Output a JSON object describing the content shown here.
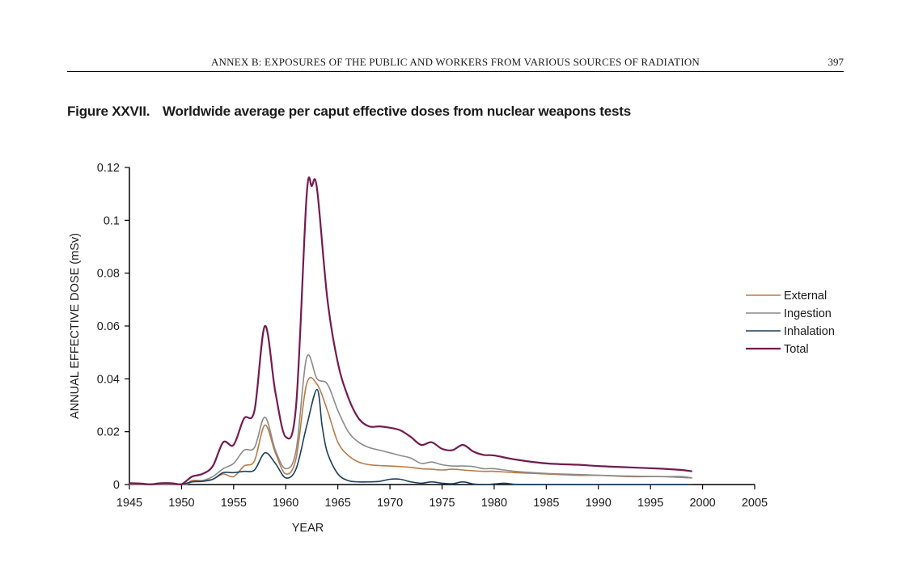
{
  "header": {
    "running_title": "ANNEX B: EXPOSURES OF THE PUBLIC AND WORKERS FROM VARIOUS SOURCES OF RADIATION",
    "page_number": "397"
  },
  "figure": {
    "label": "Figure XXVII.",
    "title": "Worldwide average per caput effective doses from nuclear weapons tests"
  },
  "chart_data": {
    "type": "line",
    "xlabel": "YEAR",
    "ylabel": "ANNUAL EFFECTIVE DOSE (mSv)",
    "xlim": [
      1945,
      2005
    ],
    "ylim": [
      0,
      0.12
    ],
    "x_ticks": [
      1945,
      1950,
      1955,
      1960,
      1965,
      1970,
      1975,
      1980,
      1985,
      1990,
      1995,
      2000,
      2005
    ],
    "y_ticks": [
      "0",
      "0.02",
      "0.04",
      "0.06",
      "0.08",
      "0.1",
      "0.12"
    ],
    "legend_position": "right",
    "grid": false,
    "series": [
      {
        "name": "External",
        "color": "#b97a45",
        "points": [
          [
            1945,
            0
          ],
          [
            1950,
            0
          ],
          [
            1951,
            0.0015
          ],
          [
            1952,
            0.0015
          ],
          [
            1953,
            0.002
          ],
          [
            1954,
            0.004
          ],
          [
            1955,
            0.003
          ],
          [
            1956,
            0.007
          ],
          [
            1957,
            0.009
          ],
          [
            1958,
            0.0225
          ],
          [
            1959,
            0.012
          ],
          [
            1960,
            0.004
          ],
          [
            1961,
            0.01
          ],
          [
            1962,
            0.038
          ],
          [
            1963,
            0.038
          ],
          [
            1964,
            0.028
          ],
          [
            1965,
            0.016
          ],
          [
            1966,
            0.011
          ],
          [
            1967,
            0.0085
          ],
          [
            1968,
            0.0075
          ],
          [
            1969,
            0.0072
          ],
          [
            1970,
            0.007
          ],
          [
            1971,
            0.0068
          ],
          [
            1972,
            0.0065
          ],
          [
            1973,
            0.006
          ],
          [
            1974,
            0.0058
          ],
          [
            1975,
            0.0055
          ],
          [
            1976,
            0.0058
          ],
          [
            1977,
            0.0055
          ],
          [
            1978,
            0.0052
          ],
          [
            1979,
            0.005
          ],
          [
            1980,
            0.005
          ],
          [
            1982,
            0.0045
          ],
          [
            1985,
            0.004
          ],
          [
            1988,
            0.0035
          ],
          [
            1990,
            0.0035
          ],
          [
            1993,
            0.003
          ],
          [
            1996,
            0.003
          ],
          [
            1999,
            0.0025
          ]
        ]
      },
      {
        "name": "Ingestion",
        "color": "#8a8a8a",
        "points": [
          [
            1945,
            0
          ],
          [
            1950,
            0
          ],
          [
            1951,
            0.001
          ],
          [
            1952,
            0.0015
          ],
          [
            1953,
            0.003
          ],
          [
            1954,
            0.006
          ],
          [
            1955,
            0.008
          ],
          [
            1956,
            0.013
          ],
          [
            1957,
            0.014
          ],
          [
            1958,
            0.0255
          ],
          [
            1959,
            0.013
          ],
          [
            1960,
            0.006
          ],
          [
            1961,
            0.013
          ],
          [
            1962,
            0.048
          ],
          [
            1963,
            0.04
          ],
          [
            1964,
            0.038
          ],
          [
            1965,
            0.028
          ],
          [
            1966,
            0.02
          ],
          [
            1967,
            0.016
          ],
          [
            1968,
            0.014
          ],
          [
            1969,
            0.013
          ],
          [
            1970,
            0.012
          ],
          [
            1971,
            0.011
          ],
          [
            1972,
            0.01
          ],
          [
            1973,
            0.008
          ],
          [
            1974,
            0.0085
          ],
          [
            1975,
            0.0075
          ],
          [
            1976,
            0.007
          ],
          [
            1977,
            0.007
          ],
          [
            1978,
            0.0068
          ],
          [
            1979,
            0.006
          ],
          [
            1980,
            0.006
          ],
          [
            1982,
            0.005
          ],
          [
            1985,
            0.0042
          ],
          [
            1988,
            0.0038
          ],
          [
            1990,
            0.0035
          ],
          [
            1993,
            0.0032
          ],
          [
            1996,
            0.003
          ],
          [
            1998,
            0.003
          ],
          [
            1999,
            0.0025
          ]
        ]
      },
      {
        "name": "Inhalation",
        "color": "#1b3f5e",
        "points": [
          [
            1945,
            0.0005
          ],
          [
            1946,
            0.0004
          ],
          [
            1947,
            0.0001
          ],
          [
            1948,
            0.0005
          ],
          [
            1949,
            0.0005
          ],
          [
            1950,
            0.0001
          ],
          [
            1951,
            0.001
          ],
          [
            1952,
            0.0012
          ],
          [
            1953,
            0.002
          ],
          [
            1954,
            0.0045
          ],
          [
            1955,
            0.0045
          ],
          [
            1956,
            0.005
          ],
          [
            1957,
            0.0055
          ],
          [
            1958,
            0.012
          ],
          [
            1959,
            0.008
          ],
          [
            1960,
            0.0025
          ],
          [
            1961,
            0.006
          ],
          [
            1962,
            0.022
          ],
          [
            1963,
            0.036
          ],
          [
            1963.5,
            0.022
          ],
          [
            1964,
            0.012
          ],
          [
            1965,
            0.004
          ],
          [
            1966,
            0.0015
          ],
          [
            1967,
            0.001
          ],
          [
            1968,
            0.001
          ],
          [
            1969,
            0.0012
          ],
          [
            1970,
            0.002
          ],
          [
            1971,
            0.002
          ],
          [
            1972,
            0.001
          ],
          [
            1973,
            0.0005
          ],
          [
            1974,
            0.001
          ],
          [
            1975,
            0.0005
          ],
          [
            1976,
            0.0003
          ],
          [
            1977,
            0.001
          ],
          [
            1978,
            0.0002
          ],
          [
            1979,
            0
          ],
          [
            1980,
            0.0002
          ],
          [
            1981,
            0.0005
          ],
          [
            1982,
            0.0001
          ],
          [
            1985,
            0
          ],
          [
            1990,
            0
          ],
          [
            1995,
            0
          ],
          [
            1999,
            0
          ]
        ]
      },
      {
        "name": "Total",
        "color": "#741a4f",
        "points": [
          [
            1945,
            0.0005
          ],
          [
            1946,
            0.0004
          ],
          [
            1947,
            0.0001
          ],
          [
            1948,
            0.0005
          ],
          [
            1949,
            0.0005
          ],
          [
            1950,
            0.0001
          ],
          [
            1951,
            0.003
          ],
          [
            1952,
            0.004
          ],
          [
            1953,
            0.007
          ],
          [
            1954,
            0.016
          ],
          [
            1955,
            0.015
          ],
          [
            1956,
            0.025
          ],
          [
            1957,
            0.028
          ],
          [
            1958,
            0.06
          ],
          [
            1959,
            0.035
          ],
          [
            1960,
            0.018
          ],
          [
            1961,
            0.03
          ],
          [
            1962,
            0.109
          ],
          [
            1962.5,
            0.113
          ],
          [
            1963,
            0.112
          ],
          [
            1964,
            0.07
          ],
          [
            1965,
            0.046
          ],
          [
            1966,
            0.033
          ],
          [
            1967,
            0.025
          ],
          [
            1968,
            0.022
          ],
          [
            1969,
            0.022
          ],
          [
            1970,
            0.0215
          ],
          [
            1971,
            0.0205
          ],
          [
            1972,
            0.018
          ],
          [
            1973,
            0.015
          ],
          [
            1974,
            0.016
          ],
          [
            1975,
            0.0135
          ],
          [
            1976,
            0.013
          ],
          [
            1977,
            0.015
          ],
          [
            1978,
            0.0125
          ],
          [
            1979,
            0.0112
          ],
          [
            1980,
            0.011
          ],
          [
            1982,
            0.0095
          ],
          [
            1985,
            0.008
          ],
          [
            1988,
            0.0075
          ],
          [
            1990,
            0.007
          ],
          [
            1993,
            0.0065
          ],
          [
            1996,
            0.006
          ],
          [
            1998,
            0.0055
          ],
          [
            1999,
            0.005
          ]
        ]
      }
    ]
  }
}
